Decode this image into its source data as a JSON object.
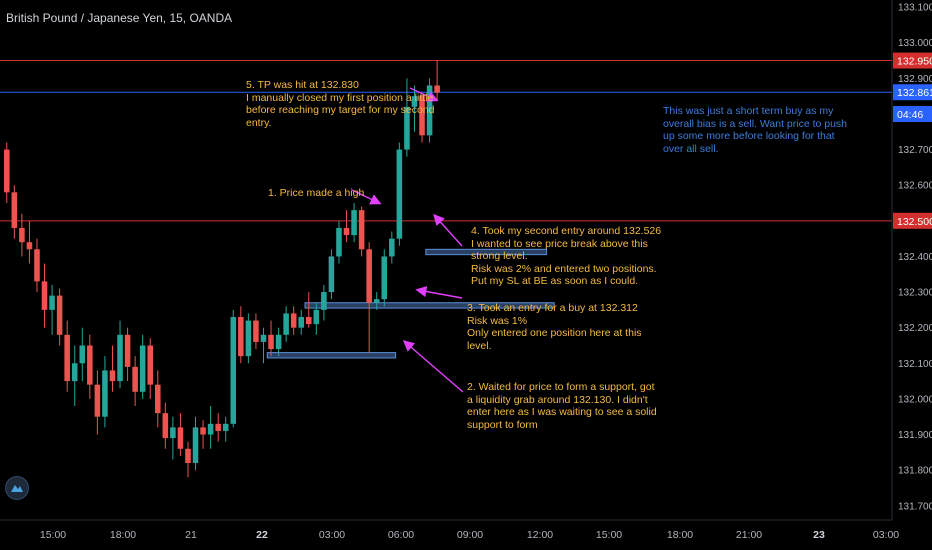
{
  "header": {
    "title": "British Pound / Japanese Yen, 15, OANDA"
  },
  "colors": {
    "up": "#26a69a",
    "down": "#ef5350",
    "annotation": "#f5b942",
    "arrow": "#e040fb",
    "note": "#3c7dd8",
    "red_line": "#d32f2f",
    "blue_line": "#2962ff",
    "zone": "#5b8fd9"
  },
  "chart_data": {
    "type": "candlestick",
    "symbol": "GBPJPY",
    "timeframe": "15",
    "ylim": [
      131.66,
      133.12
    ],
    "y_ticks": [
      133.1,
      133.0,
      132.9,
      132.7,
      132.6,
      132.4,
      132.3,
      132.2,
      132.1,
      132.0,
      131.9,
      131.8,
      131.7
    ],
    "y_tick_labels": [
      "133.100",
      "133.000",
      "132.900",
      "132.700",
      "132.600",
      "132.400",
      "132.300",
      "132.200",
      "132.100",
      "132.000",
      "131.900",
      "131.800",
      "131.700"
    ],
    "x_tick_labels": [
      "15:00",
      "18:00",
      "21",
      "22",
      "03:00",
      "06:00",
      "09:00",
      "12:00",
      "15:00",
      "18:00",
      "21:00",
      "23",
      "03:00"
    ],
    "bold_x_ticks": [
      "22",
      "23"
    ],
    "price_tags": [
      {
        "label": "132.950",
        "value": 132.95,
        "color": "#d32f2f"
      },
      {
        "label": "132.861",
        "value": 132.861,
        "color": "#2962ff"
      },
      {
        "label": "04:46",
        "value": 132.8,
        "color": "#2962ff"
      },
      {
        "label": "132.500",
        "value": 132.5,
        "color": "#d32f2f"
      }
    ],
    "horizontal_lines": [
      {
        "value": 132.95,
        "color": "#d32f2f"
      },
      {
        "value": 132.861,
        "color": "#2962ff"
      },
      {
        "value": 132.5,
        "color": "#d32f2f"
      }
    ],
    "zones": [
      {
        "start": 56,
        "end": 72,
        "top": 132.42,
        "bottom": 132.405
      },
      {
        "start": 40,
        "end": 73,
        "top": 132.27,
        "bottom": 132.255
      },
      {
        "start": 35,
        "end": 52,
        "top": 132.13,
        "bottom": 132.115
      }
    ],
    "candles": [
      [
        132.7,
        132.72,
        132.55,
        132.58
      ],
      [
        132.58,
        132.6,
        132.45,
        132.48
      ],
      [
        132.48,
        132.52,
        132.4,
        132.44
      ],
      [
        132.44,
        132.5,
        132.38,
        132.42
      ],
      [
        132.42,
        132.45,
        132.3,
        132.33
      ],
      [
        132.33,
        132.38,
        132.2,
        132.25
      ],
      [
        132.25,
        132.32,
        132.18,
        132.29
      ],
      [
        132.29,
        132.31,
        132.15,
        132.18
      ],
      [
        132.18,
        132.22,
        132.02,
        132.05
      ],
      [
        132.05,
        132.15,
        131.98,
        132.1
      ],
      [
        132.1,
        132.2,
        132.05,
        132.15
      ],
      [
        132.15,
        132.18,
        132.0,
        132.04
      ],
      [
        132.04,
        132.08,
        131.9,
        131.95
      ],
      [
        131.95,
        132.12,
        131.92,
        132.08
      ],
      [
        132.08,
        132.15,
        132.02,
        132.05
      ],
      [
        132.05,
        132.22,
        132.03,
        132.18
      ],
      [
        132.18,
        132.2,
        132.05,
        132.09
      ],
      [
        132.09,
        132.12,
        131.98,
        132.02
      ],
      [
        132.02,
        132.18,
        132.0,
        132.15
      ],
      [
        132.15,
        132.17,
        132.0,
        132.04
      ],
      [
        132.04,
        132.08,
        131.92,
        131.96
      ],
      [
        131.96,
        131.99,
        131.86,
        131.89
      ],
      [
        131.89,
        131.95,
        131.83,
        131.92
      ],
      [
        131.92,
        131.96,
        131.84,
        131.86
      ],
      [
        131.86,
        131.88,
        131.78,
        131.82
      ],
      [
        131.82,
        131.95,
        131.8,
        131.92
      ],
      [
        131.92,
        131.94,
        131.86,
        131.9
      ],
      [
        131.9,
        131.98,
        131.86,
        131.93
      ],
      [
        131.93,
        131.96,
        131.88,
        131.91
      ],
      [
        131.91,
        131.95,
        131.88,
        131.93
      ],
      [
        131.93,
        132.25,
        131.92,
        132.23
      ],
      [
        132.23,
        132.26,
        132.1,
        132.12
      ],
      [
        132.12,
        132.24,
        132.1,
        132.22
      ],
      [
        132.22,
        132.24,
        132.14,
        132.16
      ],
      [
        132.16,
        132.2,
        132.1,
        132.18
      ],
      [
        132.18,
        132.22,
        132.12,
        132.14
      ],
      [
        132.14,
        132.2,
        132.12,
        132.18
      ],
      [
        132.18,
        132.26,
        132.16,
        132.24
      ],
      [
        132.24,
        132.26,
        132.18,
        132.2
      ],
      [
        132.2,
        132.25,
        132.18,
        132.23
      ],
      [
        132.23,
        132.3,
        132.2,
        132.21
      ],
      [
        132.21,
        132.27,
        132.18,
        132.25
      ],
      [
        132.25,
        132.32,
        132.22,
        132.3
      ],
      [
        132.3,
        132.42,
        132.28,
        132.4
      ],
      [
        132.4,
        132.5,
        132.38,
        132.48
      ],
      [
        132.48,
        132.53,
        132.44,
        132.46
      ],
      [
        132.46,
        132.55,
        132.44,
        132.53
      ],
      [
        132.53,
        132.54,
        132.4,
        132.42
      ],
      [
        132.42,
        132.44,
        132.13,
        132.27
      ],
      [
        132.27,
        132.3,
        132.25,
        132.28
      ],
      [
        132.28,
        132.42,
        132.26,
        132.4
      ],
      [
        132.4,
        132.47,
        132.38,
        132.45
      ],
      [
        132.45,
        132.72,
        132.43,
        132.7
      ],
      [
        132.7,
        132.9,
        132.68,
        132.82
      ],
      [
        132.82,
        132.88,
        132.75,
        132.85
      ],
      [
        132.85,
        132.86,
        132.72,
        132.74
      ],
      [
        132.74,
        132.9,
        132.72,
        132.88
      ],
      [
        132.88,
        132.95,
        132.84,
        132.86
      ]
    ]
  },
  "annotations": [
    {
      "id": "tp-hit",
      "text": "5. TP was hit at 132.830\nI manually closed my first position a little\nbefore reaching my target for my second\nentry."
    },
    {
      "id": "price-high",
      "text": "1. Price made a high"
    },
    {
      "id": "second-entry",
      "text": "4. Took my second entry around 132.526\nI wanted to see price break above this\nstrong level.\nRisk was 2% and entered two positions.\nPut my SL at BE as soon as I could."
    },
    {
      "id": "first-entry",
      "text": "3. Took an entry for a buy at 132.312\nRisk was 1%\nOnly entered one position here at this\nlevel."
    },
    {
      "id": "liquidity-grab",
      "text": "2. Waited for price to form a support, got\na liquidity grab around 132.130. I didn't\nenter here as I was waiting to see a solid\nsupport to form"
    }
  ],
  "note": {
    "text": "This was just a short term buy as my\noverall bias is a sell. Want price to push\nup some more before looking for that\nover all sell."
  },
  "event_icons": [
    "uk-flag-icon",
    "uk-flag-icon",
    "japan-flag-icon"
  ]
}
